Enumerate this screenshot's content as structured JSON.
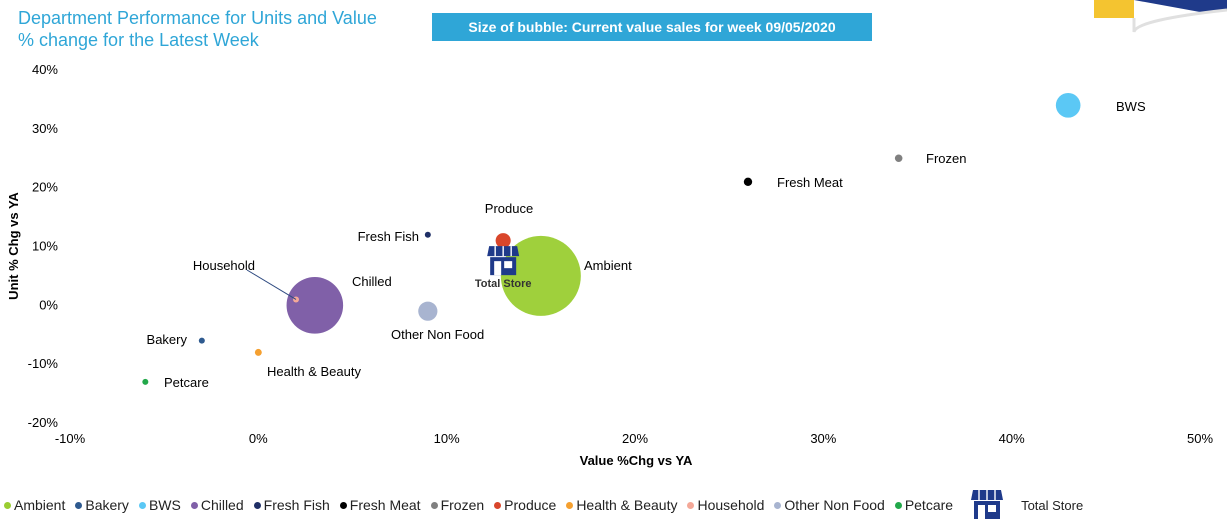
{
  "title": "Department Performance for Units and Value % change for the Latest Week",
  "banner": "Size of bubble: Current value sales for week 09/05/2020",
  "colors": {
    "title": "#2fa6d7",
    "banner_bg": "#2fa6d7",
    "store_icon": "#1f3a8a"
  },
  "chart_data": {
    "type": "scatter",
    "subtype": "bubble",
    "xlabel": "Value %Chg vs YA",
    "ylabel": "Unit % Chg vs YA",
    "xlim": [
      -10,
      50
    ],
    "ylim": [
      -20,
      40
    ],
    "x_ticks": [
      -10,
      0,
      10,
      20,
      30,
      40,
      50
    ],
    "y_ticks": [
      -20,
      -10,
      0,
      10,
      20,
      30,
      40
    ],
    "x_tick_labels": [
      "-10%",
      "0%",
      "10%",
      "20%",
      "30%",
      "40%",
      "50%"
    ],
    "y_tick_labels": [
      "-20%",
      "-10%",
      "0%",
      "10%",
      "20%",
      "30%",
      "40%"
    ],
    "grid": false,
    "legend_position": "bottom",
    "series": [
      {
        "name": "Ambient",
        "x": 15,
        "y": 5,
        "size": 2000,
        "color": "#9acd32"
      },
      {
        "name": "Bakery",
        "x": -3,
        "y": -6,
        "size": 11,
        "color": "#2e5a8f"
      },
      {
        "name": "BWS",
        "x": 43,
        "y": 34,
        "size": 190,
        "color": "#5bc8f5"
      },
      {
        "name": "Chilled",
        "x": 3,
        "y": 0,
        "size": 1000,
        "color": "#8060a8"
      },
      {
        "name": "Fresh Fish",
        "x": 9,
        "y": 12,
        "size": 1,
        "color": "#1f2f66"
      },
      {
        "name": "Fresh Meat",
        "x": 26,
        "y": 21,
        "size": 22,
        "color": "#000000"
      },
      {
        "name": "Frozen",
        "x": 34,
        "y": 25,
        "size": 18,
        "color": "#808080"
      },
      {
        "name": "Produce",
        "x": 13,
        "y": 11,
        "size": 71,
        "color": "#d9462b"
      },
      {
        "name": "Health & Beauty",
        "x": 0,
        "y": -8,
        "size": 15,
        "color": "#f5a030"
      },
      {
        "name": "Household",
        "x": 2,
        "y": 1,
        "size": 10,
        "color": "#f4a898"
      },
      {
        "name": "Other Non Food",
        "x": 9,
        "y": -1,
        "size": 115,
        "color": "#a8b4d0"
      },
      {
        "name": "Petcare",
        "x": -6,
        "y": -13,
        "size": 1,
        "color": "#22a84a"
      }
    ],
    "total_store": {
      "name": "Total Store",
      "x": 13,
      "y": 7
    }
  },
  "legend_items": [
    "Ambient",
    "Bakery",
    "BWS",
    "Chilled",
    "Fresh Fish",
    "Fresh Meat",
    "Frozen",
    "Produce",
    "Health & Beauty",
    "Household",
    "Other Non Food",
    "Petcare"
  ],
  "legend_store_label": "Total Store"
}
